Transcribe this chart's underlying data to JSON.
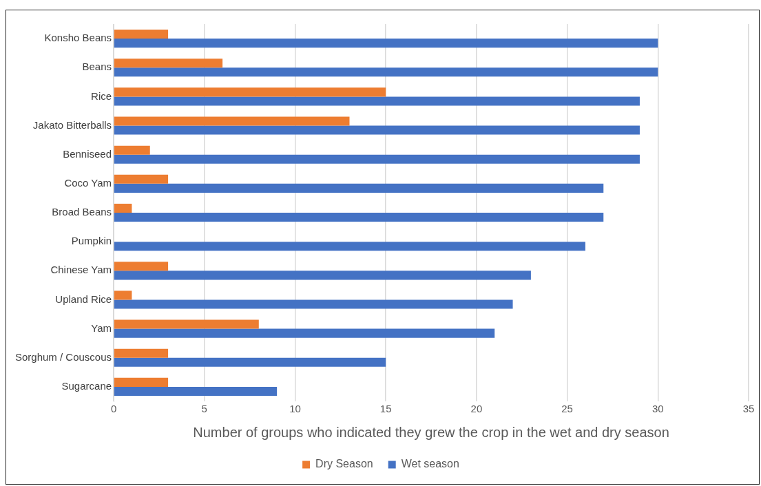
{
  "chart_data": {
    "type": "bar",
    "orientation": "horizontal",
    "xlabel": "Number of groups who indicated they grew the crop in the wet and dry season",
    "categories": [
      "Konsho Beans",
      "Beans",
      "Rice",
      "Jakato Bitterballs",
      "Benniseed",
      "Coco Yam",
      "Broad Beans",
      "Pumpkin",
      "Chinese Yam",
      "Upland Rice",
      "Yam",
      "Sorghum / Couscous",
      "Sugarcane"
    ],
    "series": [
      {
        "name": "Dry Season",
        "color": "#ed7d31",
        "values": [
          3,
          6,
          15,
          13,
          2,
          3,
          1,
          0,
          3,
          1,
          8,
          3,
          3
        ]
      },
      {
        "name": "Wet season",
        "color": "#4472c4",
        "values": [
          30,
          30,
          29,
          29,
          29,
          27,
          27,
          26,
          23,
          22,
          21,
          15,
          9
        ]
      }
    ],
    "xlim": [
      0,
      35
    ],
    "xticks": [
      0,
      5,
      10,
      15,
      20,
      25,
      30,
      35
    ],
    "grid": "x",
    "legend": "bottom"
  }
}
